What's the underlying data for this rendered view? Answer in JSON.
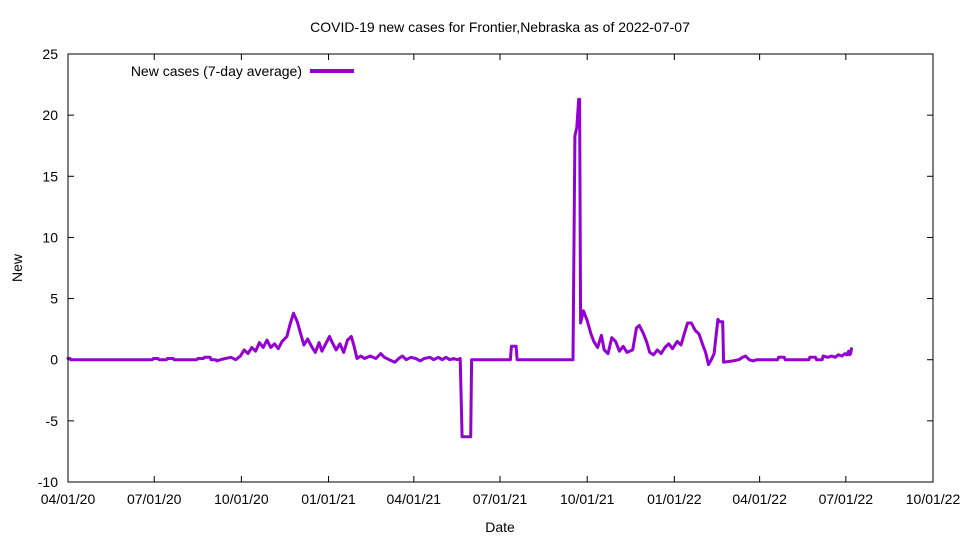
{
  "chart_data": {
    "type": "line",
    "title": "COVID-19 new cases for Frontier,Nebraska as of 2022-07-07",
    "xlabel": "Date",
    "ylabel": "New",
    "legend_position": "top-left",
    "grid": false,
    "x_domain": [
      "2020-04-01",
      "2022-10-01"
    ],
    "ylim": [
      -10,
      25
    ],
    "y_ticks": [
      -10,
      -5,
      0,
      5,
      10,
      15,
      20,
      25
    ],
    "x_ticks": [
      {
        "date": "2020-04-01",
        "label": "04/01/20"
      },
      {
        "date": "2020-07-01",
        "label": "07/01/20"
      },
      {
        "date": "2020-10-01",
        "label": "10/01/20"
      },
      {
        "date": "2021-01-01",
        "label": "01/01/21"
      },
      {
        "date": "2021-04-01",
        "label": "04/01/21"
      },
      {
        "date": "2021-07-01",
        "label": "07/01/21"
      },
      {
        "date": "2021-10-01",
        "label": "10/01/21"
      },
      {
        "date": "2022-01-01",
        "label": "01/01/22"
      },
      {
        "date": "2022-04-01",
        "label": "04/01/22"
      },
      {
        "date": "2022-07-01",
        "label": "07/01/22"
      },
      {
        "date": "2022-10-01",
        "label": "10/01/22"
      }
    ],
    "series": [
      {
        "name": "New cases (7-day average)",
        "color": "#9400d3",
        "points": [
          [
            "2020-04-01",
            0.1
          ],
          [
            "2020-04-03",
            0.1
          ],
          [
            "2020-04-04",
            0.0
          ],
          [
            "2020-06-29",
            0.0
          ],
          [
            "2020-06-30",
            0.1
          ],
          [
            "2020-07-05",
            0.1
          ],
          [
            "2020-07-06",
            0.0
          ],
          [
            "2020-07-14",
            0.0
          ],
          [
            "2020-07-15",
            0.1
          ],
          [
            "2020-07-21",
            0.1
          ],
          [
            "2020-07-22",
            0.0
          ],
          [
            "2020-08-15",
            0.0
          ],
          [
            "2020-08-16",
            0.1
          ],
          [
            "2020-08-22",
            0.1
          ],
          [
            "2020-08-23",
            0.2
          ],
          [
            "2020-08-29",
            0.2
          ],
          [
            "2020-08-30",
            0.0
          ],
          [
            "2020-09-04",
            0.0
          ],
          [
            "2020-09-05",
            -0.1
          ],
          [
            "2020-09-09",
            0.0
          ],
          [
            "2020-09-14",
            0.1
          ],
          [
            "2020-09-20",
            0.2
          ],
          [
            "2020-09-25",
            0.0
          ],
          [
            "2020-09-30",
            0.3
          ],
          [
            "2020-10-04",
            0.8
          ],
          [
            "2020-10-08",
            0.5
          ],
          [
            "2020-10-12",
            1.0
          ],
          [
            "2020-10-16",
            0.7
          ],
          [
            "2020-10-20",
            1.4
          ],
          [
            "2020-10-24",
            1.0
          ],
          [
            "2020-10-28",
            1.6
          ],
          [
            "2020-11-01",
            1.0
          ],
          [
            "2020-11-05",
            1.3
          ],
          [
            "2020-11-09",
            0.9
          ],
          [
            "2020-11-13",
            1.5
          ],
          [
            "2020-11-18",
            1.9
          ],
          [
            "2020-11-21",
            2.8
          ],
          [
            "2020-11-25",
            3.8
          ],
          [
            "2020-11-29",
            3.1
          ],
          [
            "2020-12-03",
            2.0
          ],
          [
            "2020-12-06",
            1.2
          ],
          [
            "2020-12-10",
            1.7
          ],
          [
            "2020-12-14",
            1.1
          ],
          [
            "2020-12-18",
            0.6
          ],
          [
            "2020-12-22",
            1.4
          ],
          [
            "2020-12-25",
            0.7
          ],
          [
            "2020-12-29",
            1.3
          ],
          [
            "2021-01-02",
            1.9
          ],
          [
            "2021-01-05",
            1.4
          ],
          [
            "2021-01-09",
            0.8
          ],
          [
            "2021-01-13",
            1.3
          ],
          [
            "2021-01-17",
            0.6
          ],
          [
            "2021-01-21",
            1.6
          ],
          [
            "2021-01-25",
            1.9
          ],
          [
            "2021-01-28",
            1.1
          ],
          [
            "2021-01-31",
            0.1
          ],
          [
            "2021-02-04",
            0.3
          ],
          [
            "2021-02-08",
            0.1
          ],
          [
            "2021-02-14",
            0.3
          ],
          [
            "2021-02-20",
            0.1
          ],
          [
            "2021-02-25",
            0.5
          ],
          [
            "2021-03-01",
            0.2
          ],
          [
            "2021-03-06",
            0.0
          ],
          [
            "2021-03-12",
            -0.2
          ],
          [
            "2021-03-16",
            0.1
          ],
          [
            "2021-03-20",
            0.3
          ],
          [
            "2021-03-24",
            0.0
          ],
          [
            "2021-03-29",
            0.2
          ],
          [
            "2021-04-03",
            0.1
          ],
          [
            "2021-04-08",
            -0.1
          ],
          [
            "2021-04-12",
            0.1
          ],
          [
            "2021-04-18",
            0.2
          ],
          [
            "2021-04-22",
            0.0
          ],
          [
            "2021-04-27",
            0.2
          ],
          [
            "2021-05-01",
            0.0
          ],
          [
            "2021-05-05",
            0.2
          ],
          [
            "2021-05-09",
            0.0
          ],
          [
            "2021-05-13",
            0.1
          ],
          [
            "2021-05-17",
            0.0
          ],
          [
            "2021-05-20",
            0.1
          ],
          [
            "2021-05-22",
            -6.3
          ],
          [
            "2021-05-31",
            -6.3
          ],
          [
            "2021-06-01",
            0.0
          ],
          [
            "2021-07-12",
            0.0
          ],
          [
            "2021-07-13",
            1.1
          ],
          [
            "2021-07-18",
            1.1
          ],
          [
            "2021-07-19",
            0.0
          ],
          [
            "2021-09-16",
            0.0
          ],
          [
            "2021-09-18",
            18.3
          ],
          [
            "2021-09-20",
            19.0
          ],
          [
            "2021-09-22",
            21.3
          ],
          [
            "2021-09-23",
            21.3
          ],
          [
            "2021-09-24",
            3.0
          ],
          [
            "2021-09-27",
            4.0
          ],
          [
            "2021-10-01",
            3.2
          ],
          [
            "2021-10-05",
            2.1
          ],
          [
            "2021-10-08",
            1.5
          ],
          [
            "2021-10-12",
            1.0
          ],
          [
            "2021-10-16",
            2.0
          ],
          [
            "2021-10-19",
            0.8
          ],
          [
            "2021-10-23",
            0.5
          ],
          [
            "2021-10-27",
            1.8
          ],
          [
            "2021-10-31",
            1.5
          ],
          [
            "2021-11-04",
            0.7
          ],
          [
            "2021-11-08",
            1.1
          ],
          [
            "2021-11-12",
            0.6
          ],
          [
            "2021-11-18",
            0.8
          ],
          [
            "2021-11-22",
            2.6
          ],
          [
            "2021-11-25",
            2.8
          ],
          [
            "2021-11-29",
            2.2
          ],
          [
            "2021-12-03",
            1.4
          ],
          [
            "2021-12-06",
            0.6
          ],
          [
            "2021-12-10",
            0.4
          ],
          [
            "2021-12-14",
            0.8
          ],
          [
            "2021-12-18",
            0.5
          ],
          [
            "2021-12-22",
            1.0
          ],
          [
            "2021-12-26",
            1.3
          ],
          [
            "2021-12-30",
            0.9
          ],
          [
            "2022-01-04",
            1.5
          ],
          [
            "2022-01-08",
            1.2
          ],
          [
            "2022-01-11",
            2.0
          ],
          [
            "2022-01-15",
            3.0
          ],
          [
            "2022-01-19",
            3.0
          ],
          [
            "2022-01-23",
            2.4
          ],
          [
            "2022-01-27",
            2.1
          ],
          [
            "2022-01-31",
            1.2
          ],
          [
            "2022-02-03",
            0.6
          ],
          [
            "2022-02-06",
            -0.4
          ],
          [
            "2022-02-09",
            0.0
          ],
          [
            "2022-02-12",
            0.5
          ],
          [
            "2022-02-16",
            3.3
          ],
          [
            "2022-02-18",
            3.1
          ],
          [
            "2022-02-21",
            3.1
          ],
          [
            "2022-02-22",
            -0.2
          ],
          [
            "2022-03-04",
            -0.1
          ],
          [
            "2022-03-10",
            0.0
          ],
          [
            "2022-03-14",
            0.2
          ],
          [
            "2022-03-17",
            0.3
          ],
          [
            "2022-03-21",
            0.0
          ],
          [
            "2022-03-25",
            -0.1
          ],
          [
            "2022-03-29",
            0.0
          ],
          [
            "2022-04-20",
            0.0
          ],
          [
            "2022-04-21",
            0.2
          ],
          [
            "2022-04-27",
            0.2
          ],
          [
            "2022-04-28",
            0.0
          ],
          [
            "2022-05-23",
            0.0
          ],
          [
            "2022-05-24",
            0.2
          ],
          [
            "2022-05-30",
            0.2
          ],
          [
            "2022-05-31",
            0.0
          ],
          [
            "2022-06-06",
            0.0
          ],
          [
            "2022-06-07",
            0.3
          ],
          [
            "2022-06-12",
            0.2
          ],
          [
            "2022-06-16",
            0.3
          ],
          [
            "2022-06-20",
            0.2
          ],
          [
            "2022-06-23",
            0.4
          ],
          [
            "2022-06-27",
            0.3
          ],
          [
            "2022-06-30",
            0.5
          ],
          [
            "2022-07-02",
            0.4
          ],
          [
            "2022-07-04",
            0.7
          ],
          [
            "2022-07-05",
            0.4
          ],
          [
            "2022-07-06",
            0.5
          ],
          [
            "2022-07-07",
            0.9
          ]
        ]
      }
    ]
  }
}
